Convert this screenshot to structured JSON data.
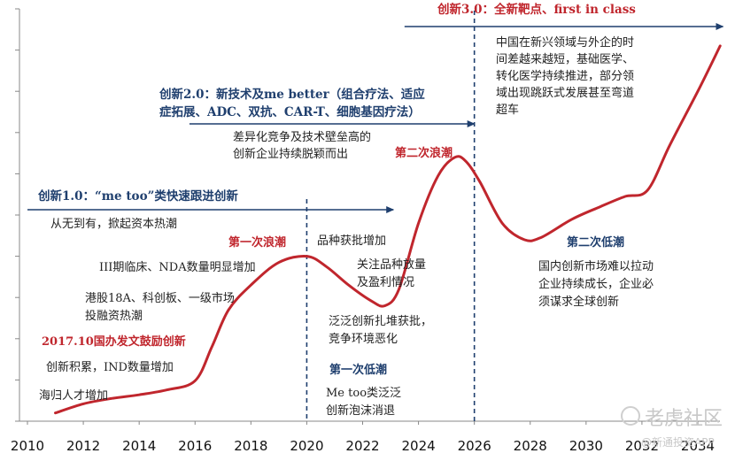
{
  "chart_data": {
    "type": "line",
    "title": "",
    "xlabel": "",
    "ylabel": "",
    "xlim": [
      2010,
      2035
    ],
    "ylim": [
      0,
      10
    ],
    "x_ticks": [
      "2010",
      "2012",
      "2014",
      "2016",
      "2018",
      "2020",
      "2022",
      "2024",
      "2026",
      "2028",
      "2030",
      "2032",
      "2034"
    ],
    "grid": false,
    "series": [
      {
        "points": [
          [
            2011.0,
            0.2
          ],
          [
            2012.0,
            0.42
          ],
          [
            2013.0,
            0.55
          ],
          [
            2014.0,
            0.64
          ],
          [
            2015.0,
            0.76
          ],
          [
            2016.0,
            0.98
          ],
          [
            2016.6,
            1.8
          ],
          [
            2017.2,
            2.7
          ],
          [
            2018.0,
            3.3
          ],
          [
            2019.0,
            3.85
          ],
          [
            2020.0,
            4.0
          ],
          [
            2020.7,
            3.75
          ],
          [
            2021.5,
            3.3
          ],
          [
            2022.3,
            2.92
          ],
          [
            2022.8,
            2.8
          ],
          [
            2023.3,
            3.2
          ],
          [
            2024.0,
            4.8
          ],
          [
            2024.7,
            5.95
          ],
          [
            2025.3,
            6.4
          ],
          [
            2025.7,
            6.3
          ],
          [
            2026.2,
            5.8
          ],
          [
            2027.0,
            4.8
          ],
          [
            2027.8,
            4.4
          ],
          [
            2028.4,
            4.46
          ],
          [
            2029.5,
            4.9
          ],
          [
            2030.5,
            5.2
          ],
          [
            2031.4,
            5.45
          ],
          [
            2032.2,
            5.6
          ],
          [
            2033.0,
            6.7
          ],
          [
            2034.0,
            8.0
          ],
          [
            2034.8,
            9.1
          ]
        ]
      }
    ],
    "dividers": [
      2020,
      2026
    ],
    "eras": [
      {
        "title": "创新1.0：“me too”类快速跟进创新",
        "arrow_from": 2010,
        "arrow_to": 2023.1
      },
      {
        "title_lines": [
          "创新2.0：新技术及me better（组合疗法、适应",
          "症拓展、ADC、双抗、CAR-T、细胞基因疗法）"
        ],
        "arrow_from": 2015.8,
        "arrow_to": 2026
      },
      {
        "title": "创新3.0：全新靶点、first in class",
        "arrow_from": 2023.5,
        "arrow_to": 2034.9
      }
    ],
    "annotations": {
      "wave1": "第一次浪潮",
      "wave2": "第二次浪潮",
      "trough1": "第一次低潮",
      "trough2": "第二次低潮",
      "policy": "2017.10国办发文鼓励创新",
      "left_notes": [
        "从无到有，掀起资本热潮",
        "III期临床、NDA数量明显增加",
        "港股18A、科创板、一级市场",
        "投融资热潮",
        "创新积累，IND数量增加",
        "海归人才增加"
      ],
      "mid_notes": [
        "品种获批增加",
        "关注品种放量",
        "及盈利情况",
        "泛泛创新扎堆获批，",
        "竞争环境恶化"
      ],
      "trough1_notes": [
        "Me too类泛泛",
        "创新泡沫消退"
      ],
      "era2_notes": [
        "差异化竞争及技术壁垒高的",
        "创新企业持续脱颖而出"
      ],
      "era3_notes": [
        "中国在新兴领域与外企的时",
        "间差越来越短，基础医学、",
        "转化医学持续推进，部分领",
        "域出现跳跃式发展甚至弯道",
        "超车"
      ],
      "trough2_notes": [
        "国内创新市场难以拉动",
        "企业持续成长，企业必",
        "须谋求全球创新"
      ]
    },
    "colors": {
      "line": "#c0262d",
      "arrow": "#1f3f6e",
      "accent": "#c0262d",
      "navy": "#1f3f6e"
    }
  },
  "watermark": {
    "main": "老虎社区",
    "sub": "@新通投资APP"
  }
}
